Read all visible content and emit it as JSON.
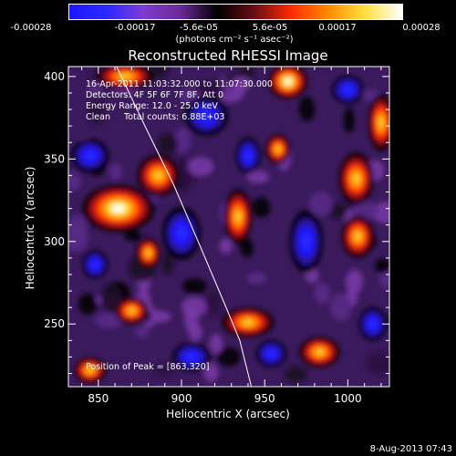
{
  "colorbar": {
    "ticks": [
      "-0.00028",
      "-0.00017",
      "-5.6e-05",
      "5.6e-05",
      "0.00017",
      "0.00028"
    ],
    "units": "(photons cm⁻² s⁻¹ asec⁻²)",
    "colors": [
      "#1e14ff",
      "#2a2aff",
      "#7d3cd0",
      "#6a2a96",
      "#000000",
      "#6a0d16",
      "#ff2a00",
      "#ff8c00",
      "#ffe040",
      "#ffffff"
    ]
  },
  "chart_data": {
    "type": "heatmap",
    "title": "Reconstructed RHESSI Image",
    "xlabel": "Heliocentric X (arcsec)",
    "ylabel": "Heliocentric Y (arcsec)",
    "xlim": [
      832,
      1025
    ],
    "ylim": [
      212,
      406
    ],
    "xticks": [
      850,
      900,
      950,
      1000
    ],
    "yticks": [
      250,
      300,
      350,
      400
    ],
    "peak": {
      "x": 863,
      "y": 320
    },
    "zrange": [
      -0.00028,
      0.00028
    ],
    "limb_curve": [
      [
        861,
        406
      ],
      [
        878,
        370
      ],
      [
        895,
        335
      ],
      [
        910,
        300
      ],
      [
        926,
        262
      ],
      [
        935,
        240
      ],
      [
        942,
        212
      ]
    ],
    "bright_sources": [
      {
        "x": 862,
        "y": 320,
        "intensity": 1.0,
        "sx": 18,
        "sy": 12
      },
      {
        "x": 886,
        "y": 340,
        "intensity": 0.75,
        "sx": 12,
        "sy": 12
      },
      {
        "x": 866,
        "y": 400,
        "intensity": 0.8,
        "sx": 16,
        "sy": 7
      },
      {
        "x": 964,
        "y": 397,
        "intensity": 0.95,
        "sx": 10,
        "sy": 9
      },
      {
        "x": 1005,
        "y": 338,
        "intensity": 0.75,
        "sx": 10,
        "sy": 15
      },
      {
        "x": 1006,
        "y": 303,
        "intensity": 0.8,
        "sx": 9,
        "sy": 12
      },
      {
        "x": 940,
        "y": 251,
        "intensity": 0.85,
        "sx": 14,
        "sy": 8
      },
      {
        "x": 880,
        "y": 293,
        "intensity": 0.7,
        "sx": 7,
        "sy": 9
      },
      {
        "x": 870,
        "y": 258,
        "intensity": 0.65,
        "sx": 10,
        "sy": 8
      },
      {
        "x": 983,
        "y": 233,
        "intensity": 0.7,
        "sx": 12,
        "sy": 9
      },
      {
        "x": 934,
        "y": 315,
        "intensity": 0.55,
        "sx": 9,
        "sy": 18
      },
      {
        "x": 1020,
        "y": 372,
        "intensity": 0.6,
        "sx": 8,
        "sy": 18
      },
      {
        "x": 845,
        "y": 222,
        "intensity": 0.6,
        "sx": 10,
        "sy": 8
      },
      {
        "x": 958,
        "y": 356,
        "intensity": 0.5,
        "sx": 8,
        "sy": 10
      }
    ],
    "dark_sources": [
      {
        "x": 900,
        "y": 305,
        "intensity": 0.9,
        "sx": 10,
        "sy": 14
      },
      {
        "x": 915,
        "y": 376,
        "intensity": 0.8,
        "sx": 12,
        "sy": 11
      },
      {
        "x": 975,
        "y": 300,
        "intensity": 0.85,
        "sx": 9,
        "sy": 17
      },
      {
        "x": 845,
        "y": 352,
        "intensity": 0.7,
        "sx": 11,
        "sy": 10
      },
      {
        "x": 954,
        "y": 232,
        "intensity": 0.7,
        "sx": 9,
        "sy": 8
      },
      {
        "x": 1000,
        "y": 392,
        "intensity": 0.6,
        "sx": 10,
        "sy": 9
      },
      {
        "x": 848,
        "y": 286,
        "intensity": 0.6,
        "sx": 8,
        "sy": 9
      },
      {
        "x": 906,
        "y": 230,
        "intensity": 0.6,
        "sx": 12,
        "sy": 9
      },
      {
        "x": 940,
        "y": 352,
        "intensity": 0.55,
        "sx": 8,
        "sy": 12
      },
      {
        "x": 1015,
        "y": 250,
        "intensity": 0.55,
        "sx": 9,
        "sy": 11
      }
    ]
  },
  "annotations": {
    "time_range": "16-Apr-2011 11:03:32.000 to 11:07:30.000",
    "detectors": "Detectors: 4F 5F 6F 7F 8F, Att 0",
    "energy": "Energy Range: 12.0 - 25.0 keV",
    "clean": "Clean     Total counts: 6.88E+03",
    "peak_label": "Position of Peak = [863,320]"
  },
  "footer": {
    "date": "8-Aug-2013 07:43"
  }
}
